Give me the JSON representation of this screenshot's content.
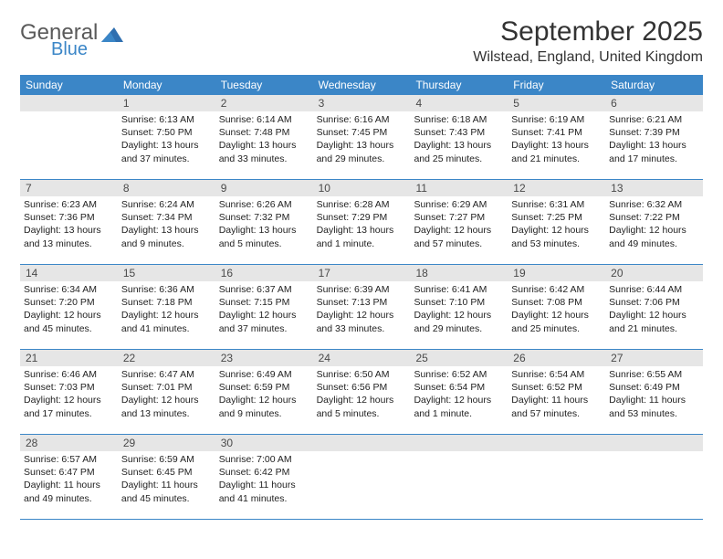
{
  "logo": {
    "text1": "General",
    "text2": "Blue"
  },
  "title": "September 2025",
  "location": "Wilstead, England, United Kingdom",
  "colors": {
    "header_bg": "#3b86c7",
    "header_text": "#ffffff",
    "daynum_bg": "#e6e6e6",
    "text": "#222222",
    "logo_gray": "#5a5a5a",
    "logo_blue": "#3b86c7"
  },
  "fonts": {
    "title_size": 30,
    "location_size": 16,
    "head_size": 12,
    "body_size": 10.5
  },
  "day_headers": [
    "Sunday",
    "Monday",
    "Tuesday",
    "Wednesday",
    "Thursday",
    "Friday",
    "Saturday"
  ],
  "weeks": [
    [
      {
        "n": "",
        "sunrise": "",
        "sunset": "",
        "daylight": ""
      },
      {
        "n": "1",
        "sunrise": "Sunrise: 6:13 AM",
        "sunset": "Sunset: 7:50 PM",
        "daylight": "Daylight: 13 hours and 37 minutes."
      },
      {
        "n": "2",
        "sunrise": "Sunrise: 6:14 AM",
        "sunset": "Sunset: 7:48 PM",
        "daylight": "Daylight: 13 hours and 33 minutes."
      },
      {
        "n": "3",
        "sunrise": "Sunrise: 6:16 AM",
        "sunset": "Sunset: 7:45 PM",
        "daylight": "Daylight: 13 hours and 29 minutes."
      },
      {
        "n": "4",
        "sunrise": "Sunrise: 6:18 AM",
        "sunset": "Sunset: 7:43 PM",
        "daylight": "Daylight: 13 hours and 25 minutes."
      },
      {
        "n": "5",
        "sunrise": "Sunrise: 6:19 AM",
        "sunset": "Sunset: 7:41 PM",
        "daylight": "Daylight: 13 hours and 21 minutes."
      },
      {
        "n": "6",
        "sunrise": "Sunrise: 6:21 AM",
        "sunset": "Sunset: 7:39 PM",
        "daylight": "Daylight: 13 hours and 17 minutes."
      }
    ],
    [
      {
        "n": "7",
        "sunrise": "Sunrise: 6:23 AM",
        "sunset": "Sunset: 7:36 PM",
        "daylight": "Daylight: 13 hours and 13 minutes."
      },
      {
        "n": "8",
        "sunrise": "Sunrise: 6:24 AM",
        "sunset": "Sunset: 7:34 PM",
        "daylight": "Daylight: 13 hours and 9 minutes."
      },
      {
        "n": "9",
        "sunrise": "Sunrise: 6:26 AM",
        "sunset": "Sunset: 7:32 PM",
        "daylight": "Daylight: 13 hours and 5 minutes."
      },
      {
        "n": "10",
        "sunrise": "Sunrise: 6:28 AM",
        "sunset": "Sunset: 7:29 PM",
        "daylight": "Daylight: 13 hours and 1 minute."
      },
      {
        "n": "11",
        "sunrise": "Sunrise: 6:29 AM",
        "sunset": "Sunset: 7:27 PM",
        "daylight": "Daylight: 12 hours and 57 minutes."
      },
      {
        "n": "12",
        "sunrise": "Sunrise: 6:31 AM",
        "sunset": "Sunset: 7:25 PM",
        "daylight": "Daylight: 12 hours and 53 minutes."
      },
      {
        "n": "13",
        "sunrise": "Sunrise: 6:32 AM",
        "sunset": "Sunset: 7:22 PM",
        "daylight": "Daylight: 12 hours and 49 minutes."
      }
    ],
    [
      {
        "n": "14",
        "sunrise": "Sunrise: 6:34 AM",
        "sunset": "Sunset: 7:20 PM",
        "daylight": "Daylight: 12 hours and 45 minutes."
      },
      {
        "n": "15",
        "sunrise": "Sunrise: 6:36 AM",
        "sunset": "Sunset: 7:18 PM",
        "daylight": "Daylight: 12 hours and 41 minutes."
      },
      {
        "n": "16",
        "sunrise": "Sunrise: 6:37 AM",
        "sunset": "Sunset: 7:15 PM",
        "daylight": "Daylight: 12 hours and 37 minutes."
      },
      {
        "n": "17",
        "sunrise": "Sunrise: 6:39 AM",
        "sunset": "Sunset: 7:13 PM",
        "daylight": "Daylight: 12 hours and 33 minutes."
      },
      {
        "n": "18",
        "sunrise": "Sunrise: 6:41 AM",
        "sunset": "Sunset: 7:10 PM",
        "daylight": "Daylight: 12 hours and 29 minutes."
      },
      {
        "n": "19",
        "sunrise": "Sunrise: 6:42 AM",
        "sunset": "Sunset: 7:08 PM",
        "daylight": "Daylight: 12 hours and 25 minutes."
      },
      {
        "n": "20",
        "sunrise": "Sunrise: 6:44 AM",
        "sunset": "Sunset: 7:06 PM",
        "daylight": "Daylight: 12 hours and 21 minutes."
      }
    ],
    [
      {
        "n": "21",
        "sunrise": "Sunrise: 6:46 AM",
        "sunset": "Sunset: 7:03 PM",
        "daylight": "Daylight: 12 hours and 17 minutes."
      },
      {
        "n": "22",
        "sunrise": "Sunrise: 6:47 AM",
        "sunset": "Sunset: 7:01 PM",
        "daylight": "Daylight: 12 hours and 13 minutes."
      },
      {
        "n": "23",
        "sunrise": "Sunrise: 6:49 AM",
        "sunset": "Sunset: 6:59 PM",
        "daylight": "Daylight: 12 hours and 9 minutes."
      },
      {
        "n": "24",
        "sunrise": "Sunrise: 6:50 AM",
        "sunset": "Sunset: 6:56 PM",
        "daylight": "Daylight: 12 hours and 5 minutes."
      },
      {
        "n": "25",
        "sunrise": "Sunrise: 6:52 AM",
        "sunset": "Sunset: 6:54 PM",
        "daylight": "Daylight: 12 hours and 1 minute."
      },
      {
        "n": "26",
        "sunrise": "Sunrise: 6:54 AM",
        "sunset": "Sunset: 6:52 PM",
        "daylight": "Daylight: 11 hours and 57 minutes."
      },
      {
        "n": "27",
        "sunrise": "Sunrise: 6:55 AM",
        "sunset": "Sunset: 6:49 PM",
        "daylight": "Daylight: 11 hours and 53 minutes."
      }
    ],
    [
      {
        "n": "28",
        "sunrise": "Sunrise: 6:57 AM",
        "sunset": "Sunset: 6:47 PM",
        "daylight": "Daylight: 11 hours and 49 minutes."
      },
      {
        "n": "29",
        "sunrise": "Sunrise: 6:59 AM",
        "sunset": "Sunset: 6:45 PM",
        "daylight": "Daylight: 11 hours and 45 minutes."
      },
      {
        "n": "30",
        "sunrise": "Sunrise: 7:00 AM",
        "sunset": "Sunset: 6:42 PM",
        "daylight": "Daylight: 11 hours and 41 minutes."
      },
      {
        "n": "",
        "sunrise": "",
        "sunset": "",
        "daylight": ""
      },
      {
        "n": "",
        "sunrise": "",
        "sunset": "",
        "daylight": ""
      },
      {
        "n": "",
        "sunrise": "",
        "sunset": "",
        "daylight": ""
      },
      {
        "n": "",
        "sunrise": "",
        "sunset": "",
        "daylight": ""
      }
    ]
  ]
}
